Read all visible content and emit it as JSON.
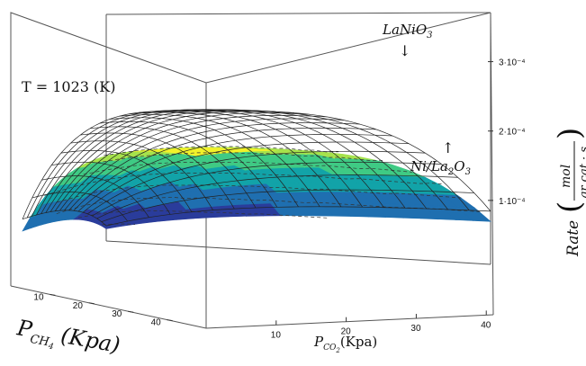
{
  "chart_data": {
    "type": "surface",
    "annotation": "T = 1023 (K)",
    "series": [
      {
        "name": "LaNiO3",
        "label_main": "LaNi",
        "label_sub": "3",
        "label_o": "O",
        "style": "wireframe",
        "color": "#222222"
      },
      {
        "name": "Ni/La2O3",
        "label_parts": [
          "Ni/La",
          "2",
          "O",
          "3"
        ],
        "style": "filled",
        "colormap": [
          "#3b0f70",
          "#2a3c9b",
          "#1f6fb0",
          "#12a3a8",
          "#3fca84",
          "#a6e24c",
          "#f2f22a"
        ]
      }
    ],
    "x_axis": {
      "label_main": "P",
      "label_sub": "CO",
      "label_subsub": "2",
      "label_unit": "(Kpa)",
      "ticks": [
        "10",
        "20",
        "30",
        "40"
      ],
      "range": [
        0,
        40
      ]
    },
    "y_axis": {
      "label_main": "P",
      "label_sub": "CH",
      "label_subsub": "4",
      "label_unit": "(Kpa)",
      "ticks": [
        "10",
        "20",
        "30",
        "40"
      ],
      "range": [
        0,
        40
      ]
    },
    "z_axis": {
      "label_word": "Rate",
      "label_num": "mol",
      "label_den": "gr cat · s",
      "ticks": [
        "1·10⁻⁴",
        "2·10⁻⁴",
        "3·10⁻⁴"
      ],
      "tick_values": [
        0.0001,
        0.0002,
        0.0003
      ],
      "range": [
        0,
        0.00035
      ]
    },
    "surfaces": {
      "LaNiO3": {
        "rate_at_corner": 0.00031,
        "shape": "saturating"
      },
      "Ni/La2O3": {
        "rate_at_corner": 0.00025,
        "shape": "saturating"
      }
    }
  }
}
